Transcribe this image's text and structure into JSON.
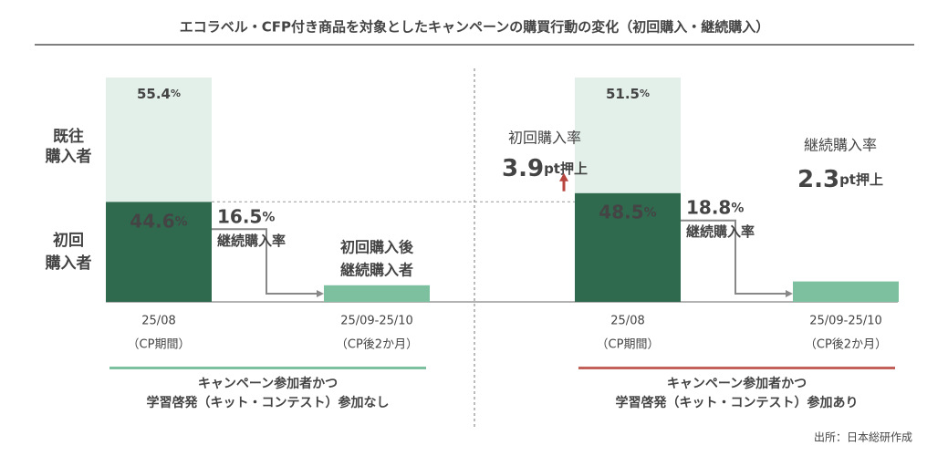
{
  "chart_data": {
    "type": "bar",
    "title": "エコラベル・CFP付き商品を対象としたキャンペーンの購買行動の変化（初回購入・継続購入）",
    "row_labels": [
      [
        "既往",
        "購入者"
      ],
      [
        "初回",
        "購入者"
      ]
    ],
    "ylim": [
      0,
      100
    ],
    "source": "出所：日本総研作成",
    "panels": [
      {
        "categories": [
          "25/08",
          "25/09-25/10"
        ],
        "category_notes": [
          "（CP期間）",
          "（CP後2か月）"
        ],
        "series": [
          {
            "color": "#e3f0ea",
            "values": [
              55.4,
              null
            ],
            "value_labels": [
              "55.4%",
              null
            ]
          },
          {
            "color": "#2f6a4f",
            "values": [
              44.6,
              null
            ],
            "value_labels": [
              "44.6%",
              null
            ]
          },
          {
            "color": "#7cc0a0",
            "values": [
              null,
              7.4
            ]
          }
        ],
        "rate": {
          "value": 16.5,
          "label": "16.5%",
          "caption": "継続購入率"
        },
        "bar_caption": [
          "初回購入後",
          "継続購入者"
        ],
        "group_label": [
          "キャンペーン参加者かつ",
          "学習啓発（キット・コンテスト）参加なし"
        ],
        "group_color": "#7cc0a0"
      },
      {
        "categories": [
          "25/08",
          "25/09-25/10"
        ],
        "category_notes": [
          "（CP期間）",
          "（CP後2か月）"
        ],
        "series": [
          {
            "color": "#e3f0ea",
            "values": [
              51.5,
              null
            ],
            "value_labels": [
              "51.5%",
              null
            ]
          },
          {
            "color": "#2f6a4f",
            "values": [
              48.5,
              null
            ],
            "value_labels": [
              "48.5%",
              null
            ]
          },
          {
            "color": "#7cc0a0",
            "values": [
              null,
              9.1
            ]
          }
        ],
        "rate": {
          "value": 18.8,
          "label": "18.8%",
          "caption": "継続購入率"
        },
        "uplifts": [
          {
            "caption": "初回購入率",
            "value": 3.9,
            "label": "3.9pt押上"
          },
          {
            "caption": "継続購入率",
            "value": 2.3,
            "label": "2.3pt押上"
          }
        ],
        "group_label": [
          "キャンペーン参加者かつ",
          "学習啓発（キット・コンテスト）参加あり"
        ],
        "group_color": "#c2605a"
      }
    ]
  }
}
